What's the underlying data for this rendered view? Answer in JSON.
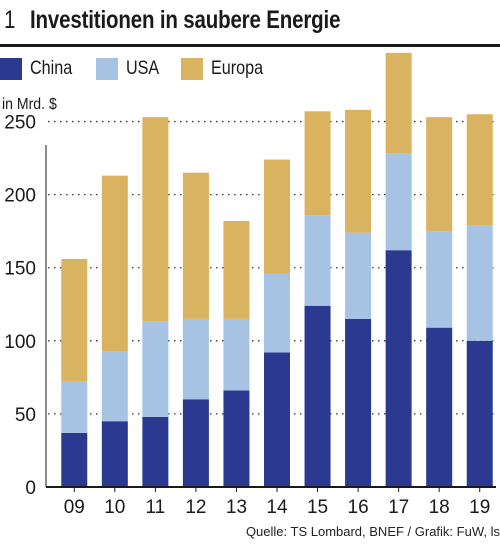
{
  "figure_number": "1",
  "title": "Investitionen in saubere Energie",
  "source": "Quelle: TS Lombard, BNEF / Grafik: FuW, ls",
  "colors": {
    "China": "#2b3990",
    "USA": "#a6c3e3",
    "Europa": "#d9b35f"
  },
  "chart_data": {
    "type": "bar",
    "stacked": true,
    "title": "Investitionen in saubere Energie",
    "ylabel": "in Mrd. $",
    "xlabel": "",
    "categories": [
      "09",
      "10",
      "11",
      "12",
      "13",
      "14",
      "15",
      "16",
      "17",
      "18",
      "19"
    ],
    "series": [
      {
        "name": "China",
        "values": [
          37,
          45,
          48,
          60,
          66,
          92,
          124,
          115,
          162,
          109,
          100
        ]
      },
      {
        "name": "USA",
        "values": [
          35,
          48,
          65,
          55,
          49,
          54,
          62,
          59,
          66,
          66,
          79
        ]
      },
      {
        "name": "Europa",
        "values": [
          84,
          120,
          140,
          100,
          67,
          78,
          71,
          84,
          69,
          78,
          76
        ]
      }
    ],
    "ylim": [
      0,
      275
    ],
    "yticks": [
      0,
      50,
      100,
      150,
      200,
      250
    ],
    "grid": "horizontal-dotted",
    "legend": "top-left"
  }
}
